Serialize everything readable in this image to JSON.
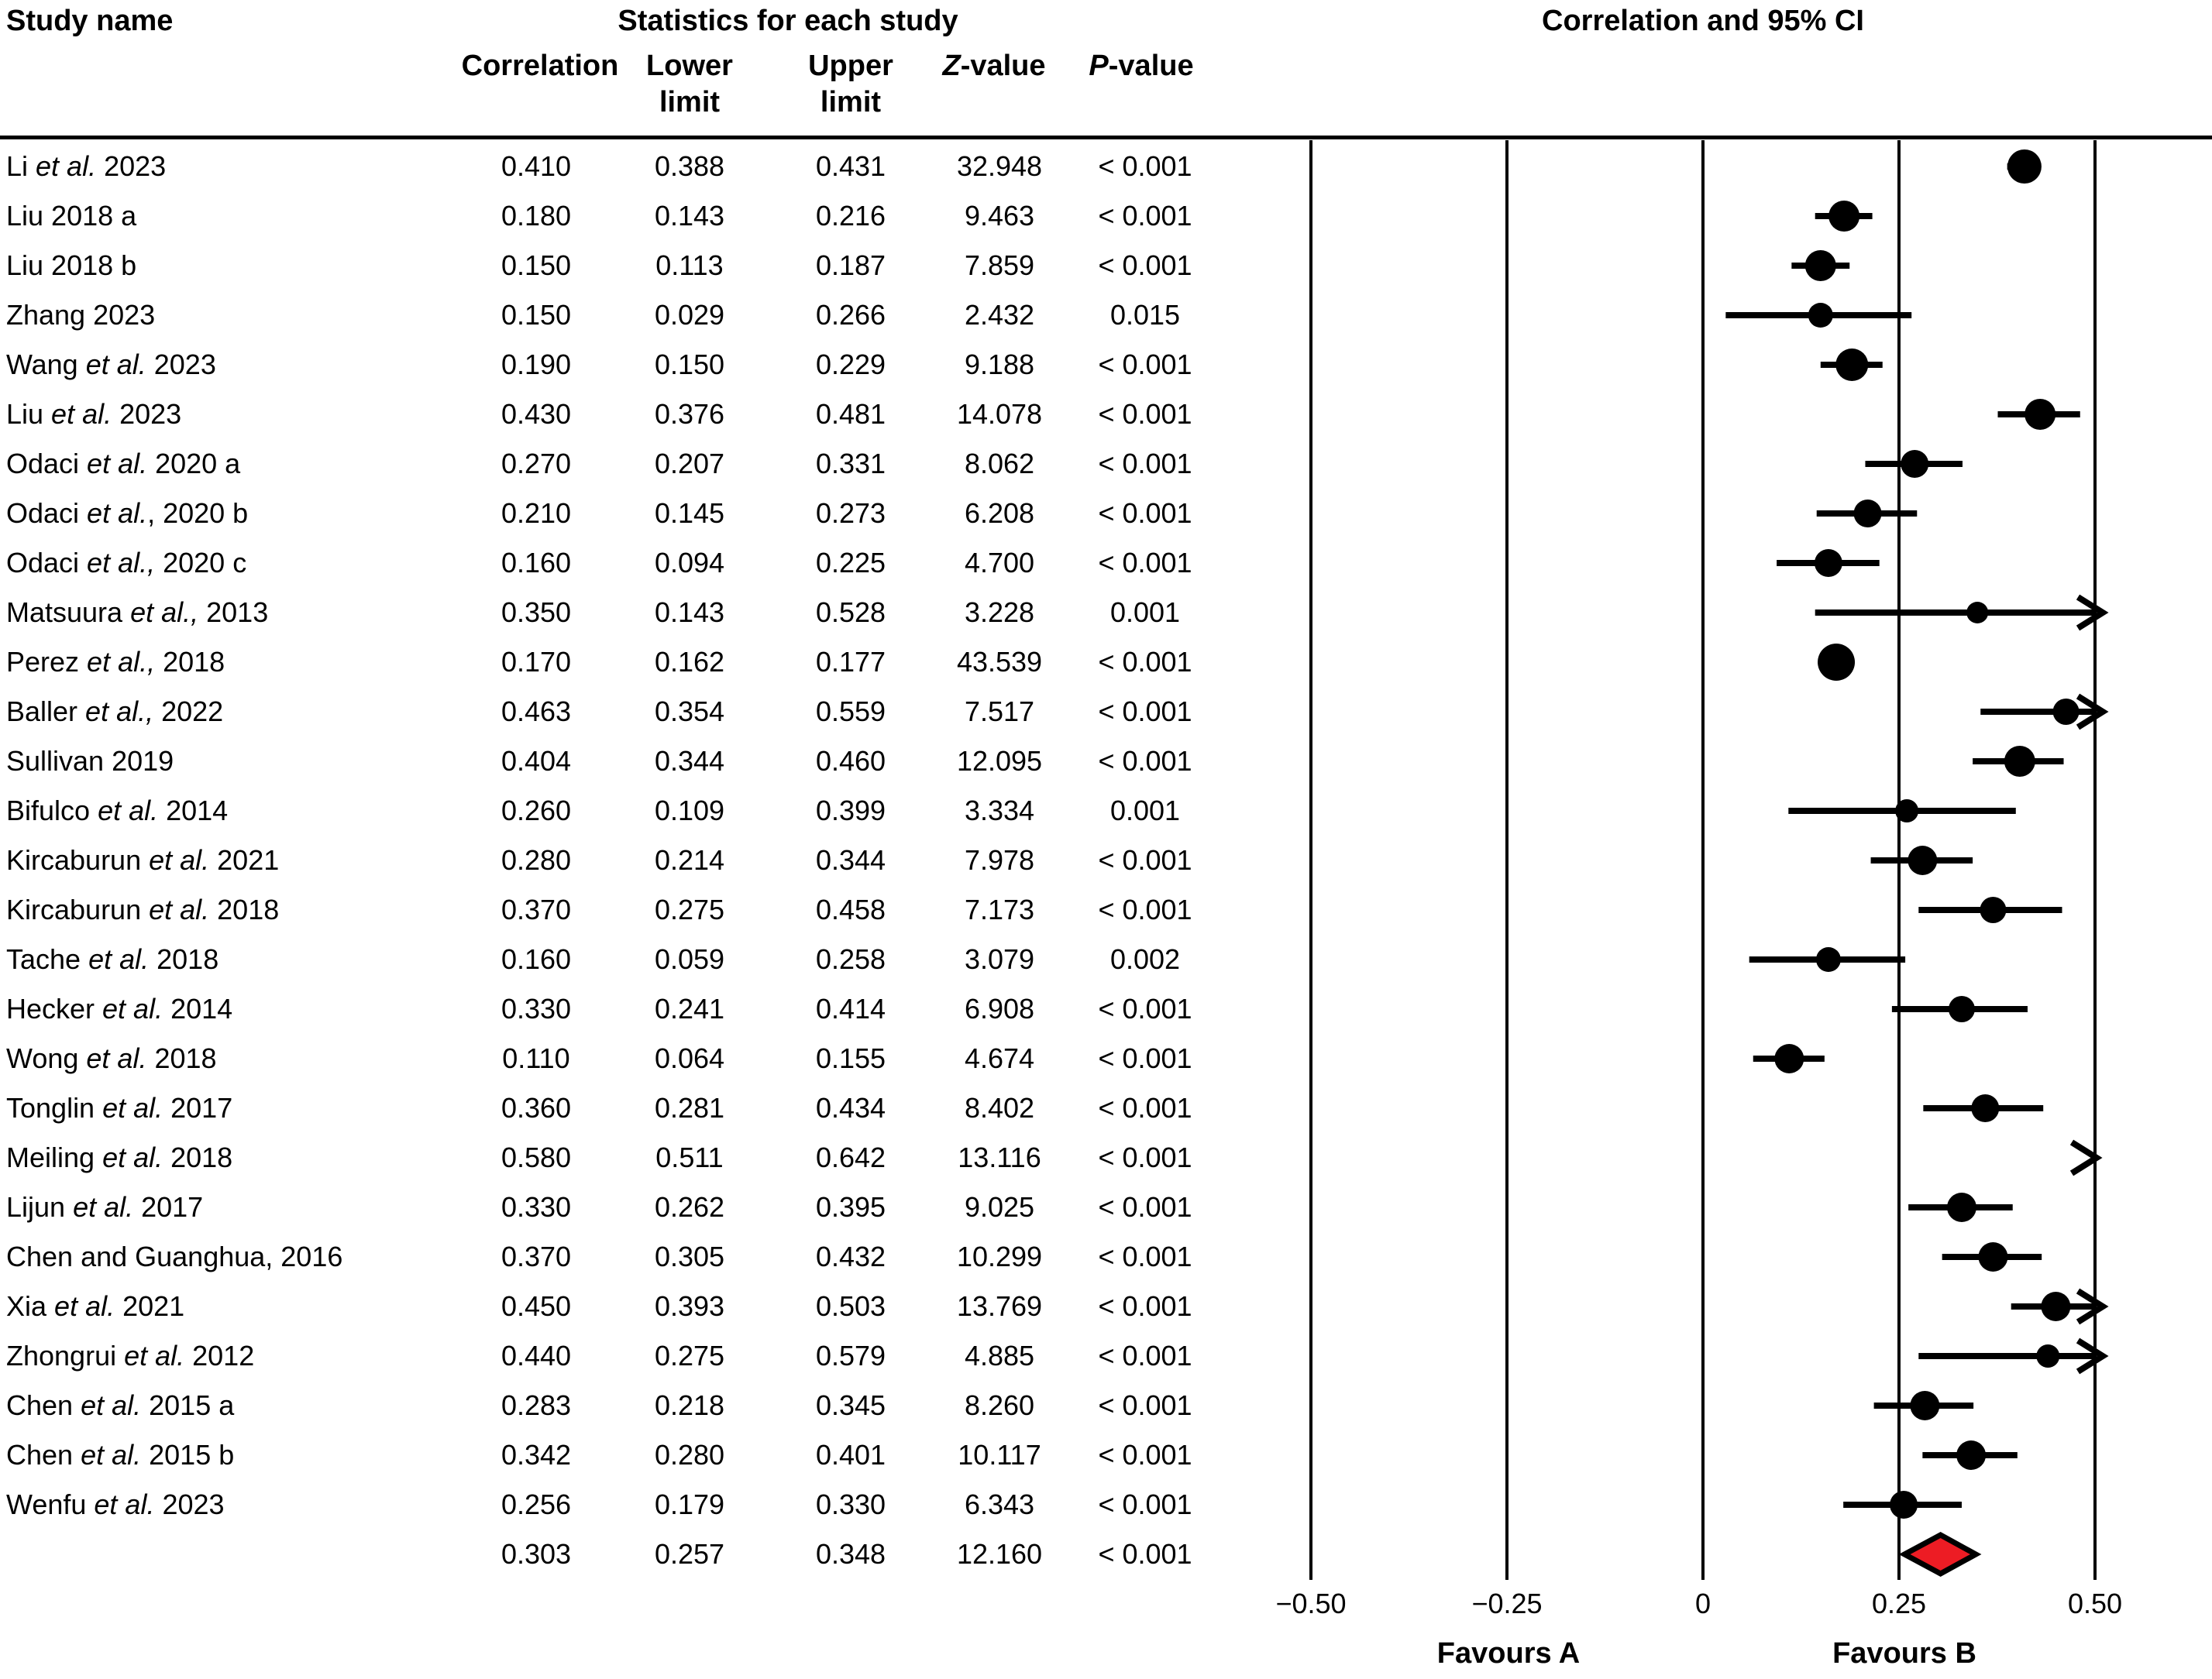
{
  "header": {
    "study_name_label": "Study name",
    "stats_title": "Statistics for each study",
    "plot_title": "Correlation and 95% CI",
    "columns": {
      "correlation": "Correlation",
      "lower_line1": "Lower",
      "lower_line2": "limit",
      "upper_line1": "Upper",
      "upper_line2": "limit",
      "z_it": "Z",
      "z_rest": "-value",
      "p_it": "P",
      "p_rest": "-value"
    }
  },
  "colors": {
    "ink": "#000000",
    "diamond_fill": "#ed1c24",
    "background": "#ffffff"
  },
  "chart_data": {
    "type": "scatter",
    "subtype": "forest-plot",
    "title": "Correlation and 95% CI",
    "xlabel": "",
    "xlim": [
      -0.5,
      0.5
    ],
    "grid": "vertical-reference-lines",
    "legend": "none",
    "favours_a": "Favours A",
    "favours_b": "Favours B",
    "ticks": [
      {
        "label": "−0.50",
        "value": -0.5
      },
      {
        "label": "−0.25",
        "value": -0.25
      },
      {
        "label": "0",
        "value": 0
      },
      {
        "label": "0.25",
        "value": 0.25
      },
      {
        "label": "0.50",
        "value": 0.5
      }
    ],
    "studies": [
      {
        "name_pre": "Li ",
        "name_it": "et al.",
        "name_post": " 2023",
        "correlation": "0.410",
        "lower": "0.388",
        "upper": "0.431",
        "z": "32.948",
        "p": "< 0.001",
        "size": 44,
        "arrow": false,
        "is_summary": false
      },
      {
        "name_pre": "Liu 2018 a",
        "name_it": "",
        "name_post": "",
        "correlation": "0.180",
        "lower": "0.143",
        "upper": "0.216",
        "z": "9.463",
        "p": "< 0.001",
        "size": 40,
        "arrow": false,
        "is_summary": false
      },
      {
        "name_pre": "Liu 2018 b",
        "name_it": "",
        "name_post": "",
        "correlation": "0.150",
        "lower": "0.113",
        "upper": "0.187",
        "z": "7.859",
        "p": "< 0.001",
        "size": 40,
        "arrow": false,
        "is_summary": false
      },
      {
        "name_pre": "Zhang 2023",
        "name_it": "",
        "name_post": "",
        "correlation": "0.150",
        "lower": "0.029",
        "upper": "0.266",
        "z": "2.432",
        "p": "0.015",
        "size": 32,
        "arrow": false,
        "is_summary": false
      },
      {
        "name_pre": "Wang ",
        "name_it": "et al.",
        "name_post": " 2023",
        "correlation": "0.190",
        "lower": "0.150",
        "upper": "0.229",
        "z": "9.188",
        "p": "< 0.001",
        "size": 42,
        "arrow": false,
        "is_summary": false
      },
      {
        "name_pre": "Liu ",
        "name_it": "et al.",
        "name_post": " 2023",
        "correlation": "0.430",
        "lower": "0.376",
        "upper": "0.481",
        "z": "14.078",
        "p": "< 0.001",
        "size": 40,
        "arrow": false,
        "is_summary": false
      },
      {
        "name_pre": "Odaci ",
        "name_it": "et al.",
        "name_post": " 2020 a",
        "correlation": "0.270",
        "lower": "0.207",
        "upper": "0.331",
        "z": "8.062",
        "p": "< 0.001",
        "size": 36,
        "arrow": false,
        "is_summary": false
      },
      {
        "name_pre": "Odaci ",
        "name_it": "et al.",
        "name_post": ", 2020 b",
        "correlation": "0.210",
        "lower": "0.145",
        "upper": "0.273",
        "z": "6.208",
        "p": "< 0.001",
        "size": 36,
        "arrow": false,
        "is_summary": false
      },
      {
        "name_pre": "Odaci ",
        "name_it": "et al.,",
        "name_post": " 2020 c",
        "correlation": "0.160",
        "lower": "0.094",
        "upper": "0.225",
        "z": "4.700",
        "p": "< 0.001",
        "size": 36,
        "arrow": false,
        "is_summary": false
      },
      {
        "name_pre": "Matsuura ",
        "name_it": "et al.,",
        "name_post": " 2013",
        "correlation": "0.350",
        "lower": "0.143",
        "upper": "0.528",
        "z": "3.228",
        "p": "0.001",
        "size": 28,
        "arrow": true,
        "is_summary": false
      },
      {
        "name_pre": "Perez ",
        "name_it": "et al.,",
        "name_post": " 2018",
        "correlation": "0.170",
        "lower": "0.162",
        "upper": "0.177",
        "z": "43.539",
        "p": "< 0.001",
        "size": 48,
        "arrow": false,
        "is_summary": false
      },
      {
        "name_pre": "Baller ",
        "name_it": "et al.,",
        "name_post": " 2022",
        "correlation": "0.463",
        "lower": "0.354",
        "upper": "0.559",
        "z": "7.517",
        "p": "< 0.001",
        "size": 34,
        "arrow": true,
        "is_summary": false
      },
      {
        "name_pre": "Sullivan 2019",
        "name_it": "",
        "name_post": "",
        "correlation": "0.404",
        "lower": "0.344",
        "upper": "0.460",
        "z": "12.095",
        "p": "< 0.001",
        "size": 40,
        "arrow": false,
        "is_summary": false
      },
      {
        "name_pre": "Bifulco ",
        "name_it": "et al.",
        "name_post": " 2014",
        "correlation": "0.260",
        "lower": "0.109",
        "upper": "0.399",
        "z": "3.334",
        "p": "0.001",
        "size": 30,
        "arrow": false,
        "is_summary": false
      },
      {
        "name_pre": "Kircaburun ",
        "name_it": "et al.",
        "name_post": " 2021",
        "correlation": "0.280",
        "lower": "0.214",
        "upper": "0.344",
        "z": "7.978",
        "p": "< 0.001",
        "size": 38,
        "arrow": false,
        "is_summary": false
      },
      {
        "name_pre": "Kircaburun ",
        "name_it": "et al.",
        "name_post": " 2018",
        "correlation": "0.370",
        "lower": "0.275",
        "upper": "0.458",
        "z": "7.173",
        "p": "< 0.001",
        "size": 34,
        "arrow": false,
        "is_summary": false
      },
      {
        "name_pre": "Tache ",
        "name_it": "et al.",
        "name_post": " 2018",
        "correlation": "0.160",
        "lower": "0.059",
        "upper": "0.258",
        "z": "3.079",
        "p": "0.002",
        "size": 32,
        "arrow": false,
        "is_summary": false
      },
      {
        "name_pre": "Hecker ",
        "name_it": "et al.",
        "name_post": " 2014",
        "correlation": "0.330",
        "lower": "0.241",
        "upper": "0.414",
        "z": "6.908",
        "p": "< 0.001",
        "size": 34,
        "arrow": false,
        "is_summary": false
      },
      {
        "name_pre": "Wong ",
        "name_it": "et al.",
        "name_post": " 2018",
        "correlation": "0.110",
        "lower": "0.064",
        "upper": "0.155",
        "z": "4.674",
        "p": "< 0.001",
        "size": 38,
        "arrow": false,
        "is_summary": false
      },
      {
        "name_pre": "Tonglin ",
        "name_it": "et al.",
        "name_post": " 2017",
        "correlation": "0.360",
        "lower": "0.281",
        "upper": "0.434",
        "z": "8.402",
        "p": "< 0.001",
        "size": 36,
        "arrow": false,
        "is_summary": false
      },
      {
        "name_pre": "Meiling ",
        "name_it": "et al.",
        "name_post": " 2018",
        "correlation": "0.580",
        "lower": "0.511",
        "upper": "0.642",
        "z": "13.116",
        "p": "< 0.001",
        "size": 36,
        "arrow": true,
        "is_summary": false
      },
      {
        "name_pre": "Lijun ",
        "name_it": "et al.",
        "name_post": " 2017",
        "correlation": "0.330",
        "lower": "0.262",
        "upper": "0.395",
        "z": "9.025",
        "p": "< 0.001",
        "size": 38,
        "arrow": false,
        "is_summary": false
      },
      {
        "name_pre": "Chen and Guanghua, 2016",
        "name_it": "",
        "name_post": "",
        "correlation": "0.370",
        "lower": "0.305",
        "upper": "0.432",
        "z": "10.299",
        "p": "< 0.001",
        "size": 38,
        "arrow": false,
        "is_summary": false
      },
      {
        "name_pre": "Xia ",
        "name_it": "et al.",
        "name_post": " 2021",
        "correlation": "0.450",
        "lower": "0.393",
        "upper": "0.503",
        "z": "13.769",
        "p": "< 0.001",
        "size": 38,
        "arrow": true,
        "is_summary": false
      },
      {
        "name_pre": "Zhongrui ",
        "name_it": "et al.",
        "name_post": " 2012",
        "correlation": "0.440",
        "lower": "0.275",
        "upper": "0.579",
        "z": "4.885",
        "p": "< 0.001",
        "size": 30,
        "arrow": true,
        "is_summary": false
      },
      {
        "name_pre": "Chen ",
        "name_it": "et al.",
        "name_post": " 2015 a",
        "correlation": "0.283",
        "lower": "0.218",
        "upper": "0.345",
        "z": "8.260",
        "p": "< 0.001",
        "size": 38,
        "arrow": false,
        "is_summary": false
      },
      {
        "name_pre": "Chen ",
        "name_it": "et al.",
        "name_post": " 2015 b",
        "correlation": "0.342",
        "lower": "0.280",
        "upper": "0.401",
        "z": "10.117",
        "p": "< 0.001",
        "size": 38,
        "arrow": false,
        "is_summary": false
      },
      {
        "name_pre": "Wenfu ",
        "name_it": "et al.",
        "name_post": " 2023",
        "correlation": "0.256",
        "lower": "0.179",
        "upper": "0.330",
        "z": "6.343",
        "p": "< 0.001",
        "size": 36,
        "arrow": false,
        "is_summary": false
      },
      {
        "name_pre": "",
        "name_it": "",
        "name_post": "",
        "correlation": "0.303",
        "lower": "0.257",
        "upper": "0.348",
        "z": "12.160",
        "p": "< 0.001",
        "size": 0,
        "arrow": false,
        "is_summary": true
      }
    ]
  }
}
